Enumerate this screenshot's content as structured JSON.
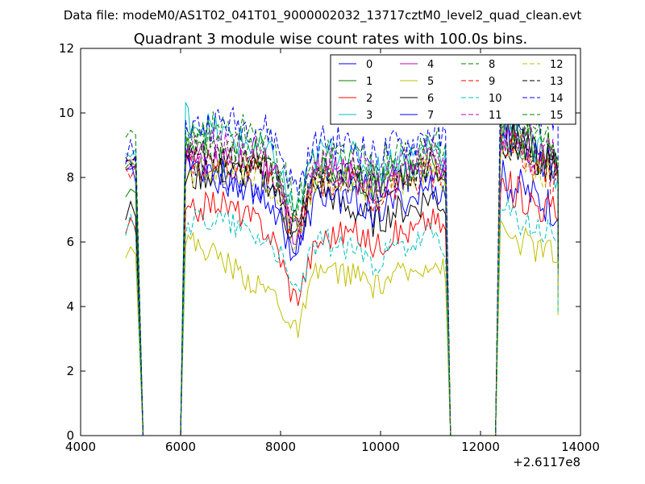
{
  "suptitle": "Data file: modeM0/AS1T02_041T01_9000002032_13717cztM0_level2_quad_clean.evt",
  "chart_data": {
    "type": "line",
    "title": "Quadrant 3 module wise count rates with 100.0s bins.",
    "xlabel": "",
    "ylabel": "",
    "xlim": [
      4000,
      14000
    ],
    "ylim": [
      0,
      12
    ],
    "x_ticks": [
      4000,
      6000,
      8000,
      10000,
      12000,
      14000
    ],
    "y_ticks": [
      0,
      2,
      4,
      6,
      8,
      10,
      12
    ],
    "x_offset_label": "+2.6117e8",
    "grid": false,
    "legend_position": "top-right",
    "segments": [
      [
        4900,
        5250
      ],
      [
        6000,
        11400
      ],
      [
        12300,
        13600
      ]
    ],
    "gap_value": 0,
    "series": [
      {
        "name": "0",
        "color": "#0000ff",
        "dash": "solid",
        "profile": [
          8.2,
          8.7,
          7.9,
          7.8,
          7.2,
          8.2,
          8.0,
          8.0
        ]
      },
      {
        "name": "1",
        "color": "#008000",
        "dash": "solid",
        "profile": [
          7.7,
          8.9,
          8.5,
          8.7,
          7.6,
          8.3,
          8.1,
          9.5
        ]
      },
      {
        "name": "2",
        "color": "#ff0000",
        "dash": "solid",
        "profile": [
          6.4,
          6.8,
          7.3,
          6.6,
          5.6,
          6.1,
          6.3,
          7.8
        ]
      },
      {
        "name": "3",
        "color": "#00bfbf",
        "dash": "solid",
        "profile": [
          8.7,
          9.9,
          9.4,
          8.9,
          8.3,
          8.9,
          8.6,
          9.4
        ]
      },
      {
        "name": "4",
        "color": "#bf00bf",
        "dash": "solid",
        "profile": [
          8.0,
          8.8,
          8.5,
          8.6,
          7.5,
          8.3,
          8.1,
          9.3
        ]
      },
      {
        "name": "5",
        "color": "#bfbf00",
        "dash": "solid",
        "profile": [
          5.9,
          6.1,
          5.6,
          4.6,
          4.5,
          5.2,
          5.0,
          6.3
        ]
      },
      {
        "name": "6",
        "color": "#000000",
        "dash": "solid",
        "profile": [
          6.9,
          7.9,
          8.2,
          8.1,
          7.4,
          7.9,
          7.0,
          9.3
        ]
      },
      {
        "name": "7",
        "color": "#0000ff",
        "dash": "solid",
        "profile": [
          8.3,
          8.6,
          8.2,
          7.5,
          6.9,
          7.5,
          7.3,
          9.4
        ]
      },
      {
        "name": "8",
        "color": "#008000",
        "dash": "dashed",
        "profile": [
          9.1,
          9.3,
          9.6,
          9.4,
          8.6,
          8.8,
          8.8,
          10.0
        ]
      },
      {
        "name": "9",
        "color": "#ff0000",
        "dash": "dashed",
        "profile": [
          8.0,
          8.5,
          8.4,
          8.3,
          7.6,
          8.0,
          7.8,
          9.1
        ]
      },
      {
        "name": "10",
        "color": "#00bfbf",
        "dash": "dashed",
        "profile": [
          6.5,
          6.6,
          6.8,
          6.2,
          5.8,
          6.1,
          5.8,
          6.9
        ]
      },
      {
        "name": "11",
        "color": "#bf00bf",
        "dash": "dashed",
        "profile": [
          8.6,
          8.9,
          9.0,
          8.8,
          8.0,
          8.6,
          8.4,
          9.6
        ]
      },
      {
        "name": "12",
        "color": "#bfbf00",
        "dash": "dashed",
        "profile": [
          8.2,
          8.1,
          8.3,
          8.0,
          7.4,
          8.2,
          7.9,
          9.1
        ]
      },
      {
        "name": "13",
        "color": "#000000",
        "dash": "dashed",
        "profile": [
          8.4,
          8.7,
          8.6,
          8.5,
          7.8,
          8.2,
          8.0,
          9.4
        ]
      },
      {
        "name": "14",
        "color": "#0000ff",
        "dash": "dashed",
        "profile": [
          8.8,
          9.5,
          9.7,
          9.6,
          9.0,
          9.2,
          9.0,
          10.9
        ]
      },
      {
        "name": "15",
        "color": "#008000",
        "dash": "dashed",
        "profile": [
          8.5,
          9.0,
          8.9,
          8.8,
          8.1,
          8.5,
          8.3,
          9.7
        ]
      }
    ]
  }
}
